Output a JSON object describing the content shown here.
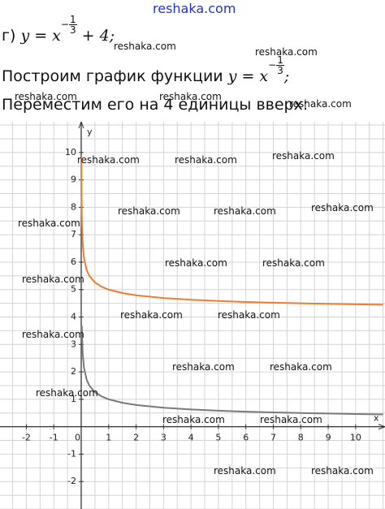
{
  "site": "reshaka.com",
  "line1": {
    "prefix": "г)",
    "base": "y = x",
    "exp_sign": "−",
    "exp_num": "1",
    "exp_den": "3",
    "suffix": "+ 4;"
  },
  "line2": {
    "prefix": "Построим график функции",
    "base": "y = x",
    "exp_sign": "−",
    "exp_num": "1",
    "exp_den": "3",
    "suffix": ";"
  },
  "line3": {
    "text": "Переместим его на 4 единицы вверх:"
  },
  "watermarks": [
    "reshaka.com",
    "reshaka.com",
    "reshaka.com",
    "reshaka.com",
    "reshaka.com",
    "reshaka.com",
    "reshaka.com",
    "reshaka.com",
    "reshaka.com",
    "reshaka.com",
    "reshaka.com",
    "reshaka.com",
    "reshaka.com",
    "reshaka.com",
    "reshaka.com",
    "reshaka.com",
    "reshaka.com",
    "reshaka.com",
    "reshaka.com",
    "reshaka.com",
    "reshaka.com",
    "reshaka.com",
    "reshaka.com",
    "reshaka.com",
    "reshaka.com"
  ],
  "graph": {
    "x_label": "x",
    "y_label": "y",
    "origin_label": "0",
    "xlim": [
      -2.96,
      11.07
    ],
    "ylim": [
      -3,
      11.12
    ],
    "grid_step": 0.5,
    "xticks": [
      -2,
      -1,
      1,
      2,
      3,
      4,
      5,
      6,
      7,
      8,
      9,
      10
    ],
    "yticks": [
      -2,
      -1,
      1,
      2,
      3,
      4,
      5,
      6,
      7,
      8,
      9,
      10
    ],
    "x": [
      0.005,
      0.01,
      0.02,
      0.05,
      0.1,
      0.2,
      0.3,
      0.5,
      0.75,
      1,
      1.5,
      2,
      3,
      4,
      5,
      6,
      7,
      8,
      9,
      10,
      11
    ],
    "series": [
      {
        "color": "#ee7d31",
        "values": [
          9.848,
          8.642,
          7.684,
          6.714,
          6.154,
          5.71,
          5.494,
          5.26,
          5.101,
          5,
          4.874,
          4.794,
          4.693,
          4.63,
          4.585,
          4.55,
          4.523,
          4.5,
          4.481,
          4.464,
          4.45
        ]
      },
      {
        "color": "#7a7a7a",
        "values": [
          null,
          null,
          3.684,
          2.714,
          2.154,
          1.71,
          1.494,
          1.26,
          1.101,
          1,
          0.874,
          0.794,
          0.693,
          0.63,
          0.585,
          0.55,
          0.523,
          0.5,
          0.481,
          0.464,
          0.45
        ]
      }
    ]
  }
}
